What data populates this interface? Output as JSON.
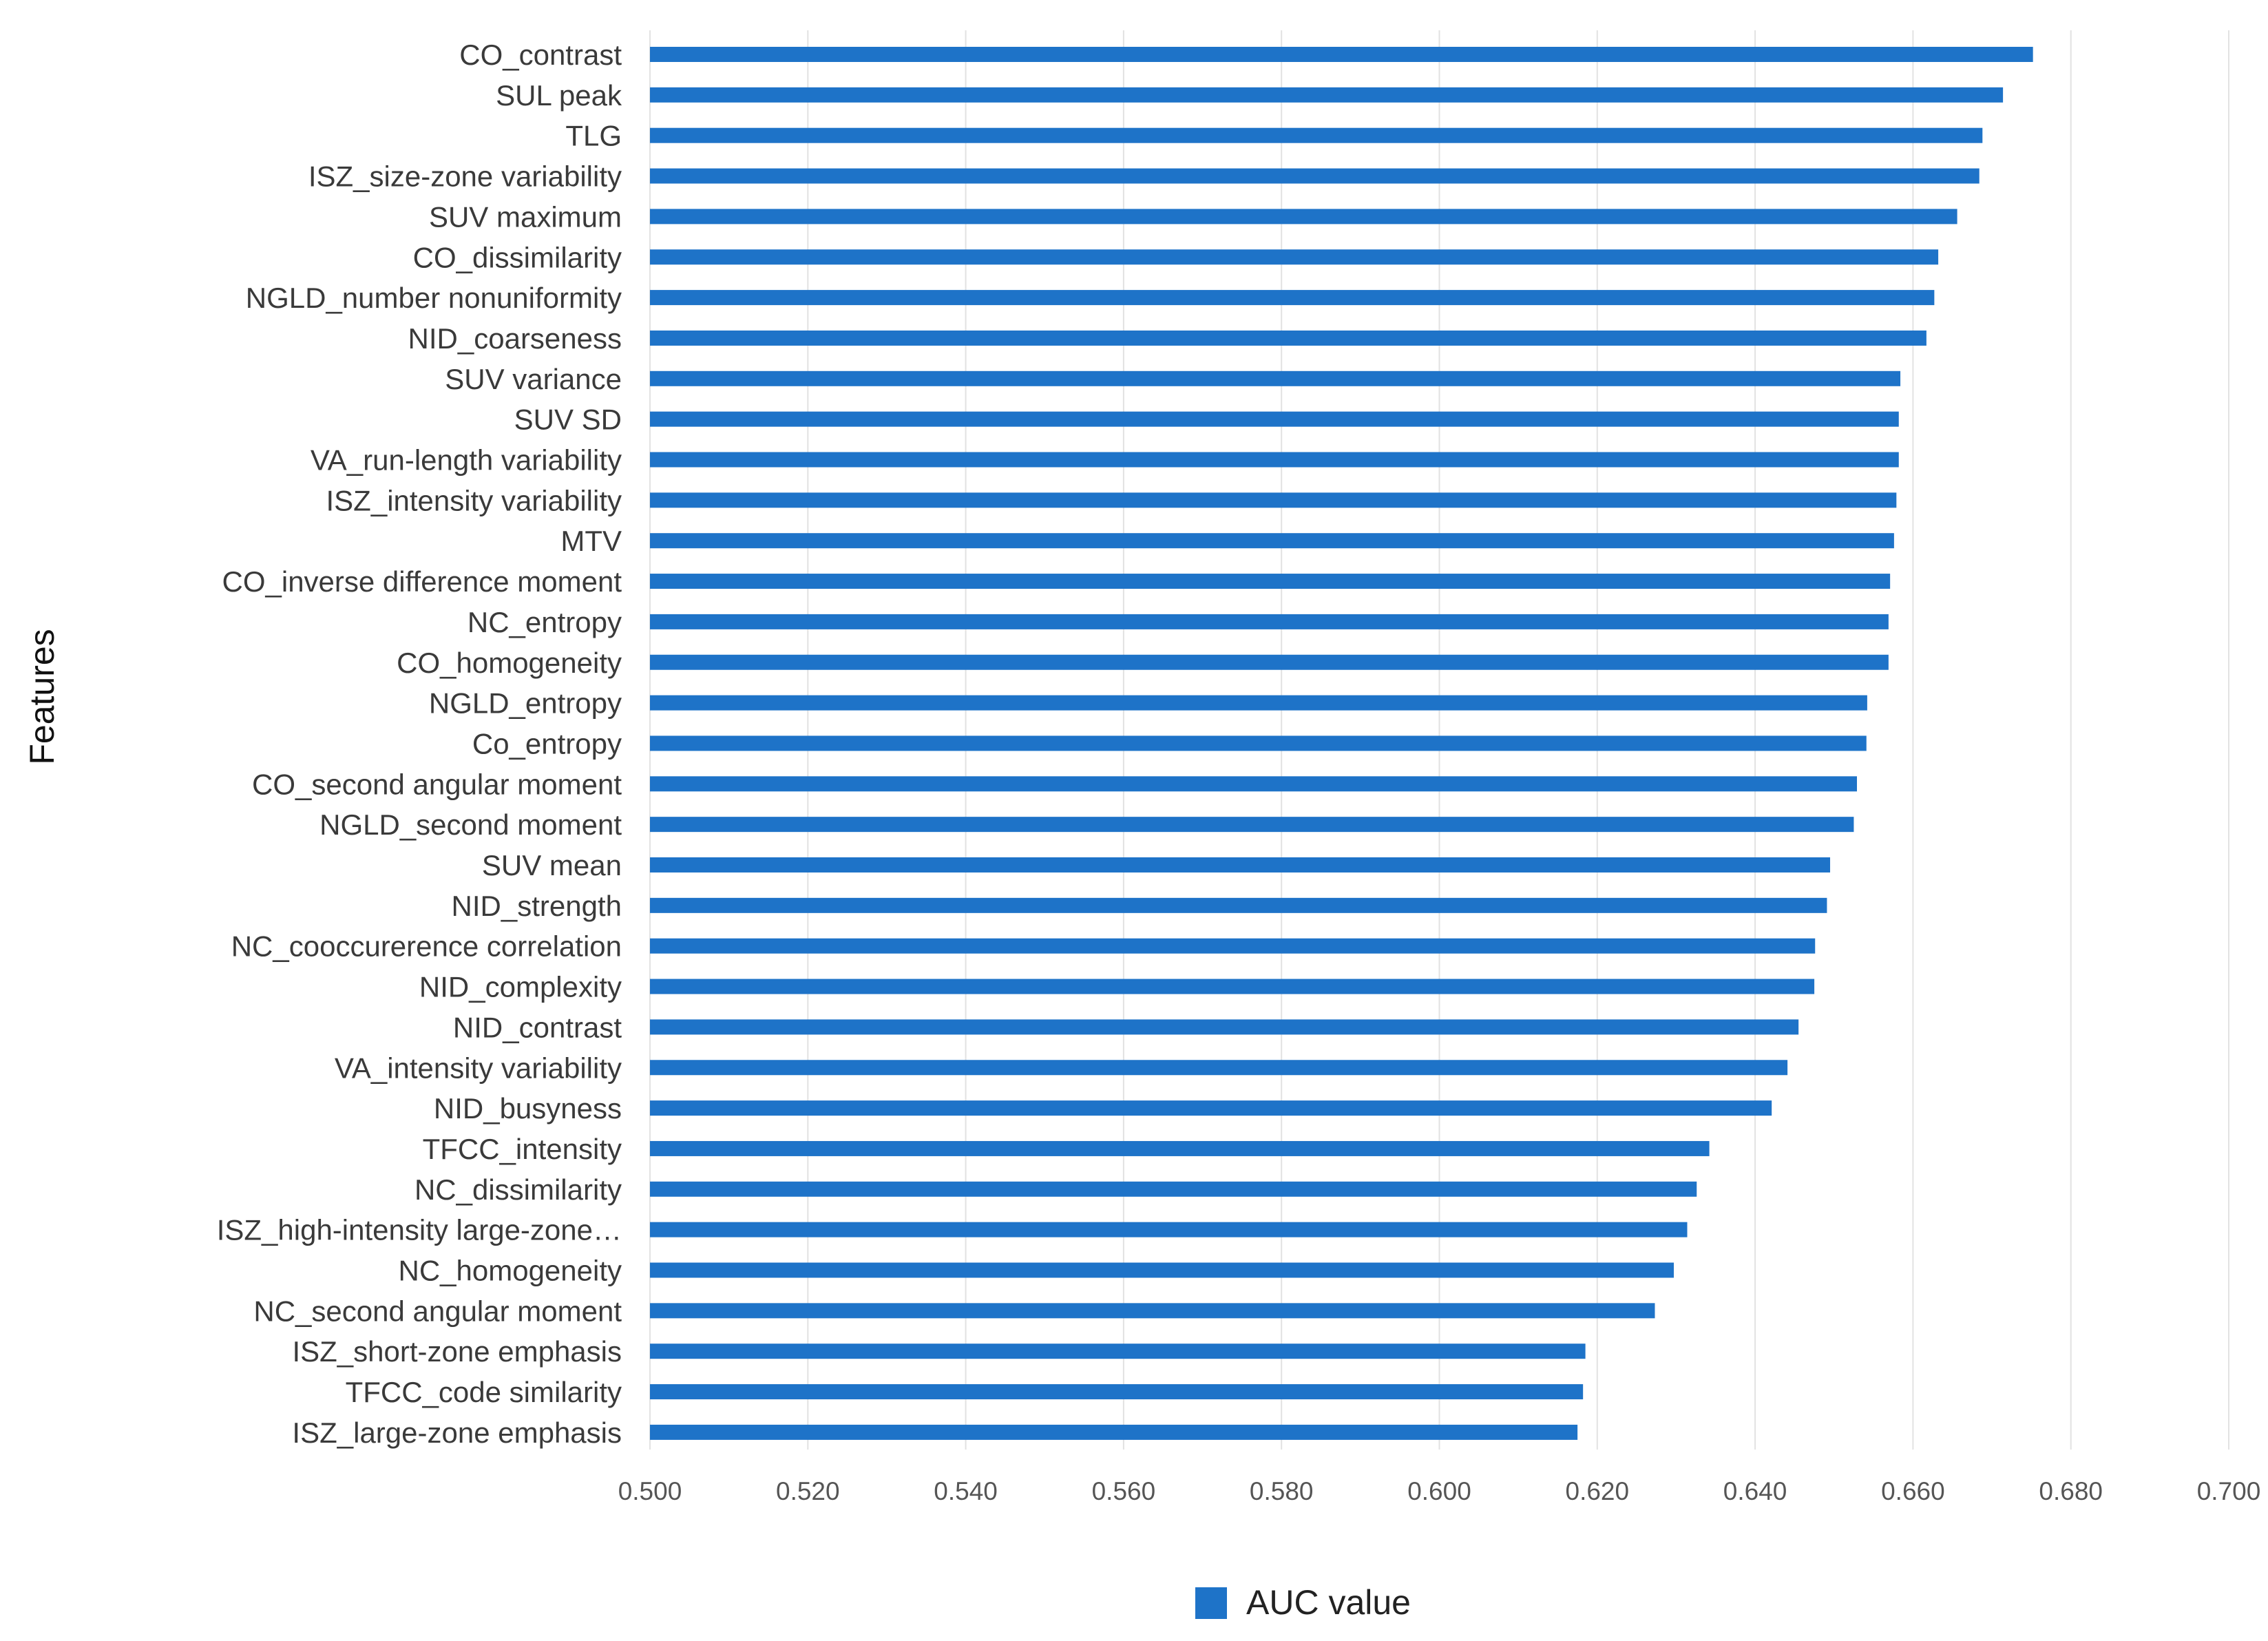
{
  "chart_data": {
    "type": "bar",
    "orientation": "horizontal",
    "title": "",
    "xlabel": "",
    "ylabel": "Features",
    "xlim": [
      0.5,
      0.7
    ],
    "xticks": [
      "0.500",
      "0.520",
      "0.540",
      "0.560",
      "0.580",
      "0.600",
      "0.620",
      "0.640",
      "0.660",
      "0.680",
      "0.700"
    ],
    "grid": "vertical",
    "legend_position": "bottom-center",
    "series": [
      {
        "name": "AUC value",
        "color": "#1e73c8"
      }
    ],
    "categories": [
      "CO_contrast",
      "SUL peak",
      "TLG",
      "ISZ_size-zone variability",
      "SUV maximum",
      "CO_dissimilarity",
      "NGLD_number nonuniformity",
      "NID_coarseness",
      "SUV variance",
      "SUV SD",
      "VA_run-length variability",
      "ISZ_intensity variability",
      "MTV",
      "CO_inverse difference moment",
      "NC_entropy",
      "CO_homogeneity",
      "NGLD_entropy",
      "Co_entropy",
      "CO_second angular moment",
      "NGLD_second moment",
      "SUV mean",
      "NID_strength",
      "NC_cooccurerence correlation",
      "NID_complexity",
      "NID_contrast",
      "VA_intensity variability",
      "NID_busyness",
      "TFCC_intensity",
      "NC_dissimilarity",
      "ISZ_high-intensity large-zone…",
      "NC_homogeneity",
      "NC_second angular moment",
      "ISZ_short-zone emphasis",
      "TFCC_code similarity",
      "ISZ_large-zone emphasis"
    ],
    "values": [
      0.6752,
      0.6714,
      0.6688,
      0.6684,
      0.6656,
      0.6632,
      0.6627,
      0.6617,
      0.6584,
      0.6582,
      0.6582,
      0.6579,
      0.6576,
      0.6571,
      0.6569,
      0.6569,
      0.6542,
      0.6541,
      0.6529,
      0.6525,
      0.6495,
      0.6491,
      0.6476,
      0.6475,
      0.6455,
      0.6441,
      0.6421,
      0.6342,
      0.6326,
      0.6314,
      0.6297,
      0.6273,
      0.6185,
      0.6182,
      0.6175
    ]
  }
}
